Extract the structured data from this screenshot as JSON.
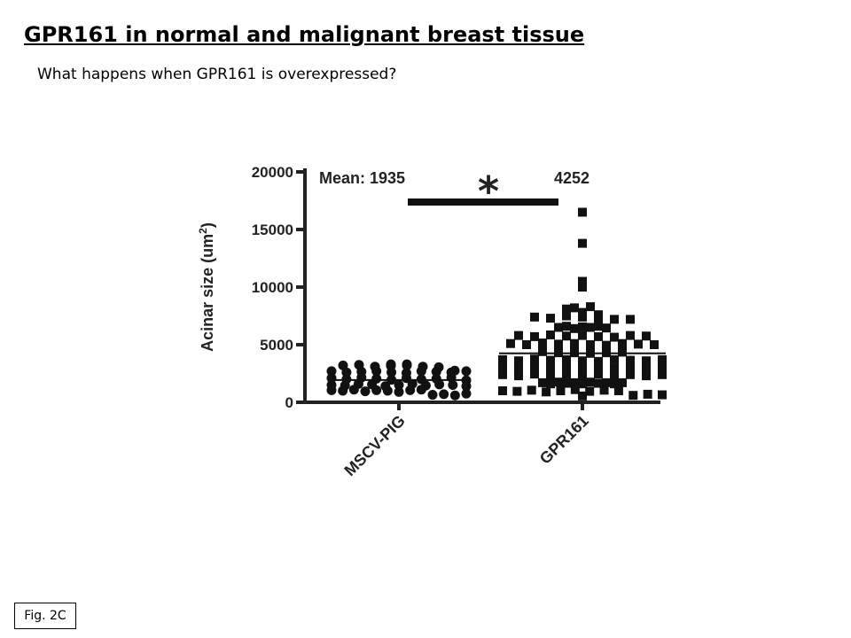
{
  "slide": {
    "title": "GPR161 in normal and malignant breast tissue",
    "subtitle": "What happens when GPR161 is overexpressed?",
    "figure_label": "Fig. 2C"
  },
  "chart_data": {
    "type": "scatter",
    "ylabel": "Acinar size (um",
    "ylabel_superscript": "2",
    "ylabel_close": ")",
    "ylim": [
      0,
      20000
    ],
    "yticks": [
      0,
      5000,
      10000,
      15000,
      20000
    ],
    "categories": [
      "MSCV-PIG",
      "GPR161"
    ],
    "mean_label_prefix": "Mean: 1935",
    "mean_label_second": "4252",
    "significance": "*",
    "colors": {
      "points": "#111111",
      "axis": "#222222"
    },
    "series": [
      {
        "category": "MSCV-PIG",
        "marker": "circle",
        "mean": 1935,
        "values": [
          3300,
          3200,
          3250,
          3100,
          3150,
          3200,
          3100,
          3300,
          3050,
          2700,
          2600,
          2750,
          2650,
          2700,
          2600,
          2550,
          2700,
          2650,
          2600,
          2700,
          2100,
          2000,
          2150,
          2050,
          1950,
          2100,
          2000,
          2050,
          2150,
          1900,
          1500,
          1450,
          1600,
          1550,
          1400,
          1500,
          1600,
          1450,
          1550,
          1500,
          1400,
          1050,
          1000,
          1100,
          950,
          1050,
          1000,
          900,
          1050,
          1100,
          650,
          700,
          600,
          750
        ]
      },
      {
        "category": "GPR161",
        "marker": "square",
        "mean": 4252,
        "values": [
          16500,
          13800,
          10500,
          10000,
          8200,
          8100,
          8300,
          7800,
          7400,
          7300,
          7500,
          7400,
          7600,
          7300,
          7200,
          7200,
          6500,
          6400,
          6600,
          6550,
          6500,
          6450,
          6600,
          5800,
          5700,
          5850,
          5750,
          5800,
          5700,
          5650,
          5800,
          5750,
          5100,
          5000,
          5150,
          5050,
          5100,
          5000,
          4950,
          5100,
          5050,
          5000,
          4400,
          4300,
          4450,
          4350,
          4400,
          4300,
          4250,
          4400,
          4350,
          4300,
          3700,
          3600,
          3750,
          3650,
          3700,
          3600,
          3550,
          3700,
          3650,
          3600,
          3700,
          3000,
          2900,
          3050,
          2950,
          3000,
          2900,
          3050,
          2950,
          3000,
          2900,
          3000,
          2400,
          2300,
          2450,
          2350,
          2400,
          2300,
          2450,
          2350,
          2400,
          2300,
          2400,
          1700,
          1600,
          1750,
          1650,
          1700,
          1600,
          1750,
          1650,
          1700,
          1600,
          1700,
          1000,
          950,
          1050,
          900,
          1000,
          1100,
          950,
          1050,
          1000,
          600,
          700,
          550,
          650
        ]
      }
    ]
  }
}
